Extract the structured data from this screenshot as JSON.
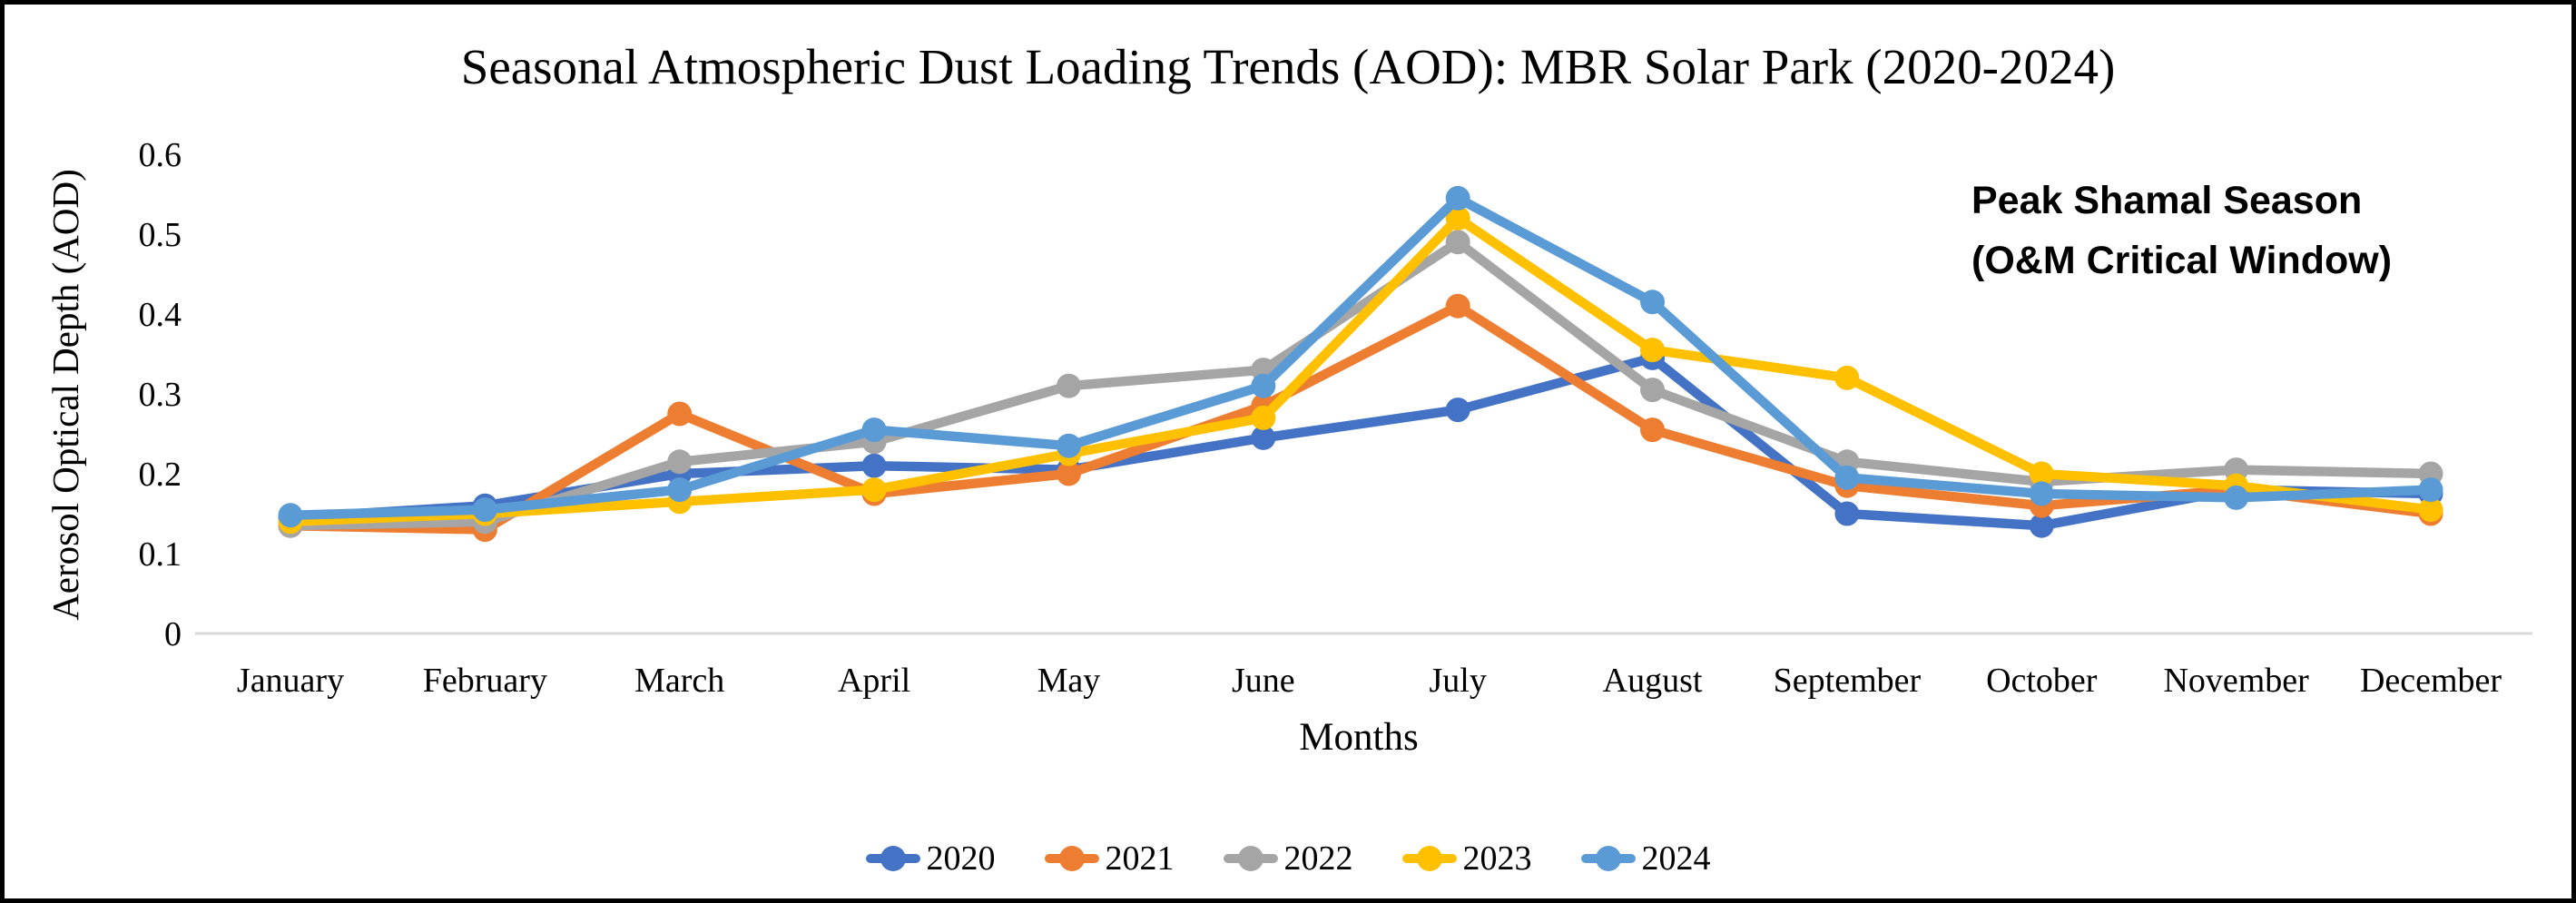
{
  "chart_data": {
    "type": "line",
    "title": "Seasonal Atmospheric Dust Loading Trends (AOD): MBR Solar Park (2020-2024)",
    "xlabel": "Months",
    "ylabel": "Aerosol Optical Depth (AOD)",
    "ylim": [
      0,
      0.6
    ],
    "y_tick_labels": [
      "0",
      "0.1",
      "0.2",
      "0.3",
      "0.4",
      "0.5",
      "0.6"
    ],
    "categories": [
      "January",
      "February",
      "March",
      "April",
      "May",
      "June",
      "July",
      "August",
      "September",
      "October",
      "November",
      "December"
    ],
    "series": [
      {
        "name": "2020",
        "color": "#4472C4",
        "values": [
          0.145,
          0.16,
          0.2,
          0.21,
          0.205,
          0.245,
          0.28,
          0.345,
          0.15,
          0.135,
          0.18,
          0.175
        ]
      },
      {
        "name": "2021",
        "color": "#ED7D31",
        "values": [
          0.135,
          0.13,
          0.275,
          0.175,
          0.2,
          0.285,
          0.41,
          0.255,
          0.185,
          0.16,
          0.18,
          0.15
        ]
      },
      {
        "name": "2022",
        "color": "#A5A5A5",
        "values": [
          0.135,
          0.14,
          0.215,
          0.24,
          0.31,
          0.33,
          0.49,
          0.305,
          0.215,
          0.19,
          0.205,
          0.2
        ]
      },
      {
        "name": "2023",
        "color": "#FFC000",
        "values": [
          0.14,
          0.15,
          0.165,
          0.18,
          0.225,
          0.27,
          0.52,
          0.355,
          0.32,
          0.2,
          0.185,
          0.155
        ]
      },
      {
        "name": "2024",
        "color": "#5B9BD5",
        "values": [
          0.148,
          0.155,
          0.18,
          0.255,
          0.235,
          0.31,
          0.545,
          0.415,
          0.195,
          0.175,
          0.17,
          0.18
        ]
      }
    ],
    "annotation": {
      "line1": "Peak Shamal Season",
      "line2": "(O&M Critical Window)"
    },
    "axis_line_color": "#D9D9D9",
    "grid": false,
    "legend_position": "bottom"
  }
}
